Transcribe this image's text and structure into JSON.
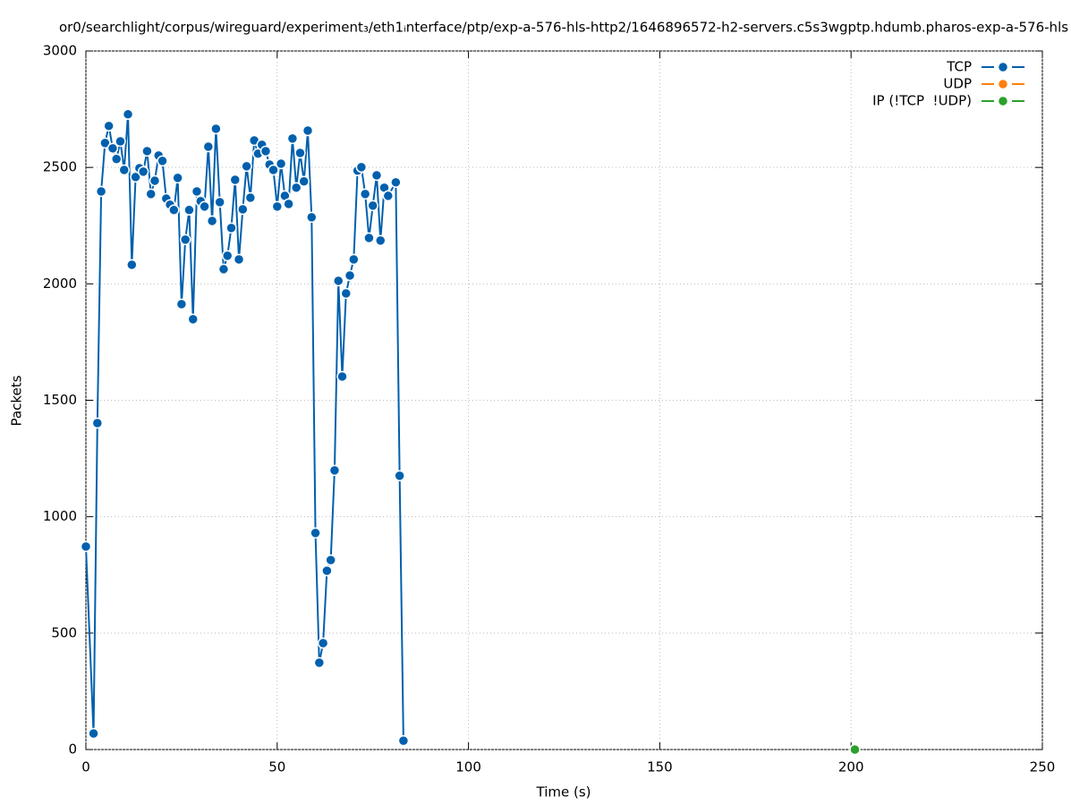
{
  "chart_data": {
    "type": "line",
    "title": "or0/searchlight/corpus/wireguard/experiment₃/eth1ᵢnterface/ptp/exp-a-576-hls-http2/1646896572-h2-servers.c5s3wgptp.hdumb.pharos-exp-a-576-hls",
    "x_label": "Time (s)",
    "y_label": "Packets",
    "xlim": [
      0,
      250
    ],
    "xticks": [
      0,
      50,
      100,
      150,
      200,
      250
    ],
    "ylim": [
      0,
      3000
    ],
    "yticks": [
      0,
      500,
      1000,
      1500,
      2000,
      2500,
      3000
    ],
    "grid": true,
    "legend": "top-right",
    "series": [
      {
        "name": "TCP",
        "color": "#0060ad",
        "x": [
          0,
          2,
          3,
          4,
          5,
          6,
          7,
          8,
          9,
          10,
          11,
          12,
          13,
          14,
          15,
          16,
          17,
          18,
          19,
          20,
          21,
          22,
          23,
          24,
          25,
          26,
          27,
          28,
          29,
          30,
          31,
          32,
          33,
          34,
          35,
          36,
          37,
          38,
          39,
          40,
          41,
          42,
          43,
          44,
          45,
          46,
          47,
          48,
          49,
          50,
          51,
          52,
          53,
          54,
          55,
          56,
          57,
          58,
          59,
          60,
          61,
          62,
          63,
          64,
          65,
          66,
          67,
          68,
          69,
          70,
          71,
          72,
          73,
          74,
          75,
          76,
          77,
          78,
          79,
          81,
          82,
          83
        ],
        "values": [
          872,
          69,
          1402,
          2397,
          2605,
          2678,
          2582,
          2536,
          2612,
          2489,
          2728,
          2082,
          2459,
          2497,
          2482,
          2570,
          2386,
          2443,
          2551,
          2528,
          2366,
          2340,
          2317,
          2455,
          1913,
          2190,
          2317,
          1848,
          2397,
          2355,
          2332,
          2589,
          2270,
          2666,
          2351,
          2063,
          2121,
          2240,
          2447,
          2105,
          2320,
          2505,
          2370,
          2616,
          2559,
          2597,
          2570,
          2512,
          2489,
          2332,
          2516,
          2378,
          2343,
          2624,
          2413,
          2562,
          2440,
          2658,
          2286,
          930,
          373,
          457,
          768,
          814,
          1199,
          2013,
          1602,
          1959,
          2036,
          2105,
          2486,
          2501,
          2386,
          2197,
          2336,
          2466,
          2186,
          2413,
          2378,
          2436,
          1176,
          38
        ]
      },
      {
        "name": "UDP",
        "color": "#ff7f0e",
        "x": [],
        "values": []
      },
      {
        "name": "IP (!TCP  !UDP)",
        "color": "#2ca02c",
        "x": [
          201
        ],
        "values": [
          0
        ]
      }
    ]
  }
}
